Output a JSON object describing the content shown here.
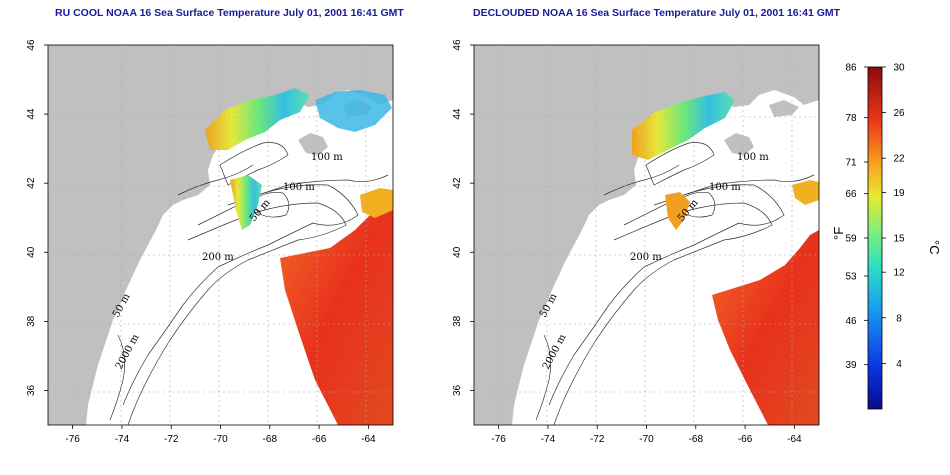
{
  "panels": [
    {
      "title": "RU COOL NOAA 16 Sea Surface Temperature July 01, 2001 16:41 GMT",
      "contour_labels": [
        "100 m",
        "100 m",
        "50 m",
        "200 m",
        "50 m",
        "2000 m"
      ]
    },
    {
      "title": "DECLOUDED NOAA 16 Sea Surface Temperature July 01, 2001 16:41 GMT",
      "contour_labels": [
        "100 m",
        "100 m",
        "50 m",
        "200 m",
        "50 m",
        "2000 m"
      ]
    }
  ],
  "map_axes": {
    "x_ticks": [
      "-76",
      "-74",
      "-72",
      "-70",
      "-68",
      "-66",
      "-64"
    ],
    "y_ticks": [
      "46",
      "44",
      "42",
      "40",
      "38",
      "36"
    ],
    "x_range": [
      -77,
      -63
    ],
    "y_range": [
      35,
      46
    ]
  },
  "colorbar": {
    "fahrenheit_label": "°F",
    "celsius_label": "°C",
    "fahrenheit_ticks": [
      "86",
      "78",
      "71",
      "66",
      "59",
      "53",
      "46",
      "39"
    ],
    "celsius_ticks": [
      "30",
      "26",
      "22",
      "19",
      "15",
      "12",
      "8",
      "4"
    ],
    "range_c": [
      0,
      30
    ]
  },
  "colors": {
    "land": "#c0c0c0",
    "ocean": "#ffffff",
    "title": "#1a1a9a",
    "warm": "#e8311c",
    "cool": "#33c0e0"
  }
}
